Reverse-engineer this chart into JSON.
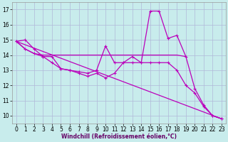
{
  "xlabel": "Windchill (Refroidissement éolien,°C)",
  "bg_color": "#c8ecec",
  "grid_color": "#b0b8d8",
  "line_color": "#bb00bb",
  "xlim": [
    -0.5,
    23.5
  ],
  "ylim": [
    9.5,
    17.5
  ],
  "yticks": [
    10,
    11,
    12,
    13,
    14,
    15,
    16,
    17
  ],
  "xticks": [
    0,
    1,
    2,
    3,
    4,
    5,
    6,
    7,
    8,
    9,
    10,
    11,
    12,
    13,
    14,
    15,
    16,
    17,
    18,
    19,
    20,
    21,
    22,
    23
  ],
  "line_spiky": {
    "x": [
      0,
      1,
      2,
      3,
      4,
      5,
      6,
      7,
      8,
      9,
      10,
      11,
      12,
      13,
      14,
      15,
      16,
      17,
      18,
      19,
      20,
      21,
      22,
      23
    ],
    "y": [
      14.9,
      15.0,
      14.4,
      13.9,
      13.9,
      13.1,
      13.0,
      12.9,
      12.8,
      13.0,
      14.6,
      13.5,
      13.5,
      13.9,
      13.5,
      16.9,
      16.9,
      15.1,
      15.3,
      13.9,
      11.8,
      10.7,
      10.0,
      9.8
    ]
  },
  "line_flat": {
    "x": [
      0,
      1,
      2,
      3,
      4,
      5,
      6,
      7,
      8,
      9,
      10,
      11,
      12,
      13,
      14,
      15,
      16,
      17,
      18,
      19
    ],
    "y": [
      14.9,
      14.4,
      14.1,
      14.0,
      14.0,
      14.0,
      14.0,
      14.0,
      14.0,
      14.0,
      14.0,
      14.0,
      14.0,
      14.0,
      14.0,
      14.0,
      14.0,
      14.0,
      14.0,
      13.9
    ]
  },
  "line_diag1": {
    "x": [
      0,
      1,
      2,
      3,
      4,
      5,
      6,
      7,
      8,
      9,
      10,
      11,
      12,
      13,
      14,
      15,
      16,
      17,
      18,
      19,
      20,
      21,
      22,
      23
    ],
    "y": [
      14.9,
      14.4,
      14.1,
      13.9,
      13.5,
      13.1,
      13.0,
      12.8,
      12.6,
      12.8,
      12.5,
      12.8,
      13.5,
      13.5,
      13.5,
      13.5,
      13.5,
      13.5,
      13.0,
      12.0,
      11.5,
      10.6,
      10.0,
      9.8
    ]
  },
  "line_diag2": {
    "x": [
      0,
      23
    ],
    "y": [
      14.9,
      9.8
    ]
  }
}
